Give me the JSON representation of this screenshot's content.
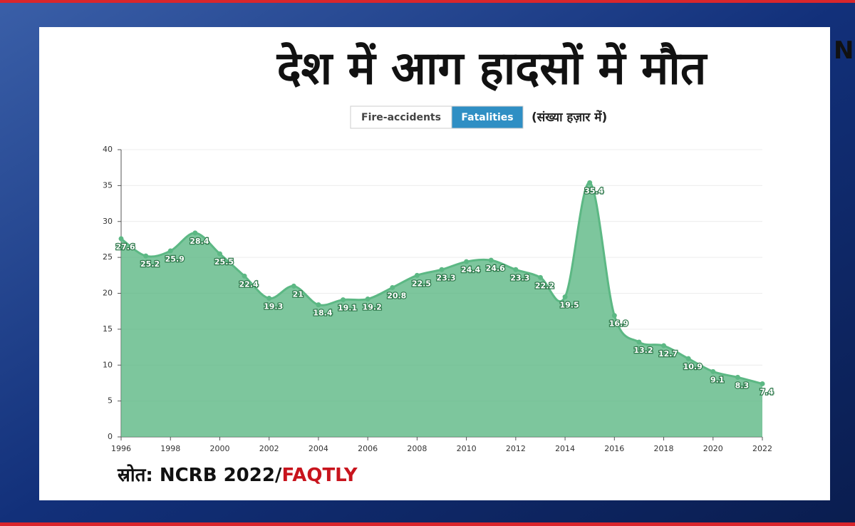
{
  "logo": "N",
  "chart_data": {
    "type": "area",
    "title": "देश में आग हादसों में मौत",
    "toggles": [
      "Fire-accidents",
      "Fatalities"
    ],
    "active_toggle": 1,
    "note": "(संख्या हज़ार में)",
    "source": "स्रोत: NCRB 2022/",
    "source_highlight": "FAQTLY",
    "x": [
      1996,
      1997,
      1998,
      1999,
      2000,
      2001,
      2002,
      2003,
      2004,
      2005,
      2006,
      2007,
      2008,
      2009,
      2010,
      2011,
      2012,
      2013,
      2014,
      2015,
      2016,
      2017,
      2018,
      2019,
      2020,
      2021,
      2022
    ],
    "values": [
      27.6,
      25.2,
      25.9,
      28.4,
      25.5,
      22.4,
      19.3,
      21,
      18.4,
      19.1,
      19.2,
      20.8,
      22.5,
      23.3,
      24.4,
      24.6,
      23.3,
      22.2,
      19.5,
      35.4,
      16.9,
      13.2,
      12.7,
      10.9,
      9.1,
      8.3,
      7.4
    ],
    "color": "#5cb884",
    "xlim": [
      1996,
      2022
    ],
    "ylim": [
      0,
      40
    ],
    "xticks": [
      1996,
      1998,
      2000,
      2002,
      2004,
      2006,
      2008,
      2010,
      2012,
      2014,
      2016,
      2018,
      2020,
      2022
    ],
    "yticks": [
      0,
      5,
      10,
      15,
      20,
      25,
      30,
      35,
      40
    ],
    "grid": true
  }
}
